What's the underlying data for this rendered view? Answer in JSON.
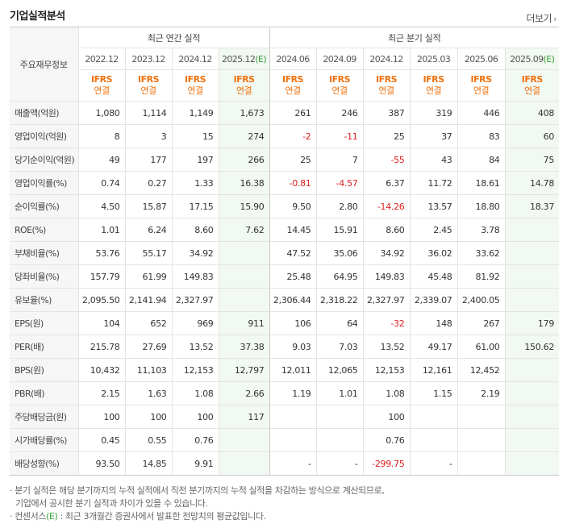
{
  "title": "기업실적분석",
  "more_label": "더보기",
  "corner_label": "주요재무정보",
  "group_annual": "최근 연간 실적",
  "group_quarter": "최근 분기 실적",
  "periods": [
    {
      "label": "2022.12",
      "est": false
    },
    {
      "label": "2023.12",
      "est": false
    },
    {
      "label": "2024.12",
      "est": false
    },
    {
      "label": "2025.12",
      "est": true
    },
    {
      "label": "2024.06",
      "est": false
    },
    {
      "label": "2024.09",
      "est": false
    },
    {
      "label": "2024.12",
      "est": false
    },
    {
      "label": "2025.03",
      "est": false
    },
    {
      "label": "2025.06",
      "est": false
    },
    {
      "label": "2025.09",
      "est": true
    }
  ],
  "est_mark": "(E)",
  "accounting_top": "IFRS",
  "accounting_sub": "연결",
  "rows": [
    {
      "label": "매출액(억원)",
      "values": [
        "1,080",
        "1,114",
        "1,149",
        "1,673",
        "261",
        "246",
        "387",
        "319",
        "446",
        "408"
      ],
      "group_start": false
    },
    {
      "label": "영업이익(억원)",
      "values": [
        "8",
        "3",
        "15",
        "274",
        "-2",
        "-11",
        "25",
        "37",
        "83",
        "60"
      ],
      "group_start": false
    },
    {
      "label": "당기순이익(억원)",
      "values": [
        "49",
        "177",
        "197",
        "266",
        "25",
        "7",
        "-55",
        "43",
        "84",
        "75"
      ],
      "group_start": false
    },
    {
      "label": "영업이익률(%)",
      "values": [
        "0.74",
        "0.27",
        "1.33",
        "16.38",
        "-0.81",
        "-4.57",
        "6.37",
        "11.72",
        "18.61",
        "14.78"
      ],
      "group_start": true
    },
    {
      "label": "순이익률(%)",
      "values": [
        "4.50",
        "15.87",
        "17.15",
        "15.90",
        "9.50",
        "2.80",
        "-14.26",
        "13.57",
        "18.80",
        "18.37"
      ],
      "group_start": false
    },
    {
      "label": "ROE(%)",
      "values": [
        "1.01",
        "6.24",
        "8.60",
        "7.62",
        "14.45",
        "15.91",
        "8.60",
        "2.45",
        "3.78",
        ""
      ],
      "group_start": false
    },
    {
      "label": "부채비율(%)",
      "values": [
        "53.76",
        "55.17",
        "34.92",
        "",
        "47.52",
        "35.06",
        "34.92",
        "36.02",
        "33.62",
        ""
      ],
      "group_start": true
    },
    {
      "label": "당좌비율(%)",
      "values": [
        "157.79",
        "61.99",
        "149.83",
        "",
        "25.48",
        "64.95",
        "149.83",
        "45.48",
        "81.92",
        ""
      ],
      "group_start": false
    },
    {
      "label": "유보율(%)",
      "values": [
        "2,095.50",
        "2,141.94",
        "2,327.97",
        "",
        "2,306.44",
        "2,318.22",
        "2,327.97",
        "2,339.07",
        "2,400.05",
        ""
      ],
      "group_start": false
    },
    {
      "label": "EPS(원)",
      "values": [
        "104",
        "652",
        "969",
        "911",
        "106",
        "64",
        "-32",
        "148",
        "267",
        "179"
      ],
      "group_start": true
    },
    {
      "label": "PER(배)",
      "values": [
        "215.78",
        "27.69",
        "13.52",
        "37.38",
        "9.03",
        "7.03",
        "13.52",
        "49.17",
        "61.00",
        "150.62"
      ],
      "group_start": false
    },
    {
      "label": "BPS(원)",
      "values": [
        "10,432",
        "11,103",
        "12,153",
        "12,797",
        "12,011",
        "12,065",
        "12,153",
        "12,161",
        "12,452",
        ""
      ],
      "group_start": false
    },
    {
      "label": "PBR(배)",
      "values": [
        "2.15",
        "1.63",
        "1.08",
        "2.66",
        "1.19",
        "1.01",
        "1.08",
        "1.15",
        "2.19",
        ""
      ],
      "group_start": false
    },
    {
      "label": "주당배당금(원)",
      "values": [
        "100",
        "100",
        "100",
        "117",
        "",
        "",
        "100",
        "",
        "",
        ""
      ],
      "group_start": true
    },
    {
      "label": "시가배당률(%)",
      "values": [
        "0.45",
        "0.55",
        "0.76",
        "",
        "",
        "",
        "0.76",
        "",
        "",
        ""
      ],
      "group_start": false
    },
    {
      "label": "배당성향(%)",
      "values": [
        "93.50",
        "14.85",
        "9.91",
        "",
        "-",
        "-",
        "-299.75",
        "-",
        "",
        ""
      ],
      "group_start": false
    }
  ],
  "notes": {
    "line1": "분기 실적은 해당 분기까지의 누적 실적에서 직전 분기까지의 누적 실적을 차감하는 방식으로 계산되므로,",
    "line2": "기업에서 공시한 분기 실적과 차이가 있을 수 있습니다.",
    "line3_pre": "컨센서스",
    "line3_mark": "(E)",
    "line3_post": " : 최근 3개월간 증권사에서 발표한 전망치의 평균값입니다."
  },
  "colors": {
    "accent_orange": "#f0720f",
    "negative_red": "#e02020",
    "estimate_green": "#3aa03a",
    "estimate_bg": "#f2f8f2"
  }
}
